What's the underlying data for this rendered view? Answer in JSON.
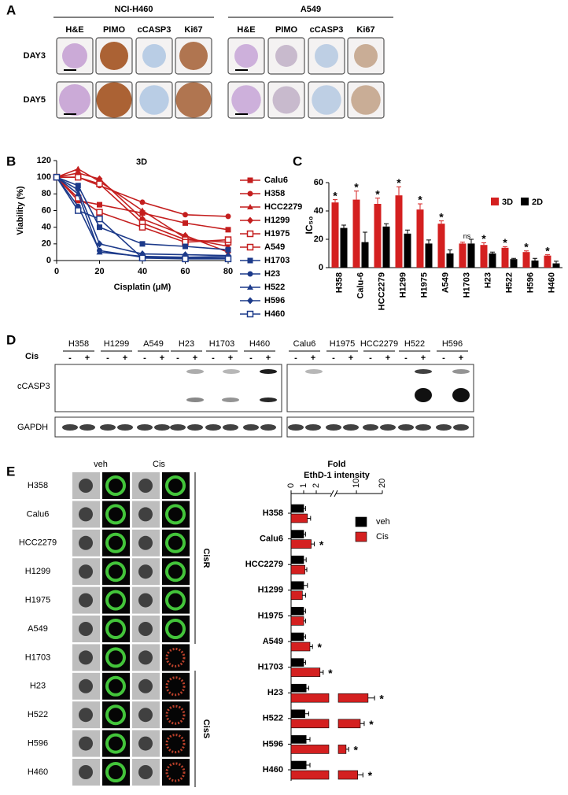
{
  "panel_labels": [
    "A",
    "B",
    "C",
    "D",
    "E"
  ],
  "panel_a": {
    "groups": [
      "NCI-H460",
      "A549"
    ],
    "stains": [
      "H&E",
      "PIMO",
      "cCASP3",
      "Ki67"
    ],
    "days": [
      "DAY3",
      "DAY5"
    ]
  },
  "panel_d": {
    "lines": [
      "H358",
      "H1299",
      "A549",
      "H23",
      "H1703",
      "H460",
      "Calu6",
      "H1975",
      "HCC2279",
      "H522",
      "H596"
    ],
    "treatment": "Cis",
    "signs": [
      "-",
      "+"
    ],
    "blots": [
      "cCASP3",
      "GAPDH"
    ]
  },
  "panel_e_images": {
    "conditions": [
      "veh",
      "Cis"
    ],
    "lines": [
      "H358",
      "Calu6",
      "HCC2279",
      "H1299",
      "H1975",
      "A549",
      "H1703",
      "H23",
      "H522",
      "H596",
      "H460"
    ],
    "groups": [
      "CisR",
      "CisS"
    ]
  },
  "chart_data": [
    {
      "type": "line",
      "title": "3D",
      "x_label": "Cisplatin (μM)",
      "y_label": "Viability (%)",
      "x": [
        0,
        10,
        20,
        40,
        60,
        80
      ],
      "xlim": [
        0,
        80
      ],
      "xticks": [
        0,
        20,
        40,
        60,
        80
      ],
      "ylim": [
        0,
        120
      ],
      "yticks": [
        0,
        20,
        40,
        60,
        80,
        100,
        120
      ],
      "series": [
        {
          "name": "Calu6",
          "color": "#c41e1e",
          "marker": "square",
          "values": [
            100,
            72,
            67,
            57,
            45,
            37
          ]
        },
        {
          "name": "H358",
          "color": "#c41e1e",
          "marker": "circle",
          "values": [
            100,
            100,
            90,
            70,
            55,
            53
          ]
        },
        {
          "name": "HCC2279",
          "color": "#c41e1e",
          "marker": "triangle",
          "values": [
            100,
            110,
            95,
            60,
            27,
            17
          ]
        },
        {
          "name": "H1299",
          "color": "#c41e1e",
          "marker": "diamond",
          "values": [
            100,
            105,
            98,
            50,
            30,
            10
          ]
        },
        {
          "name": "H1975",
          "color": "#c41e1e",
          "marker": "open",
          "values": [
            100,
            100,
            92,
            45,
            25,
            22
          ]
        },
        {
          "name": "A549",
          "color": "#c41e1e",
          "marker": "open",
          "values": [
            100,
            75,
            58,
            40,
            22,
            25
          ]
        },
        {
          "name": "H1703",
          "color": "#1c3a8a",
          "marker": "square",
          "values": [
            100,
            90,
            40,
            20,
            17,
            13
          ]
        },
        {
          "name": "H23",
          "color": "#1c3a8a",
          "marker": "circle",
          "values": [
            100,
            65,
            12,
            4,
            3,
            3
          ]
        },
        {
          "name": "H522",
          "color": "#1c3a8a",
          "marker": "triangle",
          "values": [
            100,
            80,
            10,
            5,
            4,
            5
          ]
        },
        {
          "name": "H596",
          "color": "#1c3a8a",
          "marker": "diamond",
          "values": [
            100,
            85,
            20,
            8,
            7,
            6
          ]
        },
        {
          "name": "H460",
          "color": "#1c3a8a",
          "marker": "open",
          "values": [
            100,
            60,
            50,
            3,
            2,
            2
          ]
        }
      ]
    },
    {
      "type": "bar",
      "y_label": "IC₅₀",
      "categories": [
        "H358",
        "Calu-6",
        "HCC2279",
        "H1299",
        "H1975",
        "A549",
        "H1703",
        "H23",
        "H522",
        "H596",
        "H460"
      ],
      "ylim": [
        0,
        60
      ],
      "yticks": [
        0,
        20,
        40,
        60
      ],
      "series": [
        {
          "name": "3D",
          "color": "#d42020",
          "values": [
            46,
            48,
            45,
            51,
            41,
            31,
            17,
            16,
            14,
            11,
            8.5
          ],
          "errors": [
            2,
            6,
            4,
            6,
            4,
            2,
            1,
            1.5,
            0.8,
            0.8,
            0.6
          ]
        },
        {
          "name": "2D",
          "color": "#000000",
          "values": [
            28,
            18,
            29,
            24,
            17,
            10,
            17,
            10,
            6,
            5,
            3
          ],
          "errors": [
            2,
            7,
            2,
            2.5,
            2.5,
            2.5,
            3,
            1,
            0.5,
            1.5,
            1.5
          ]
        }
      ],
      "annotations": [
        "*",
        "*",
        "*",
        "*",
        "*",
        "*",
        "ns",
        "*",
        "*",
        "*",
        "*"
      ]
    },
    {
      "type": "hbar-broken",
      "title": "Fold",
      "subtitle": "EthD-1 intensity",
      "categories": [
        "H358",
        "Calu6",
        "HCC2279",
        "H1299",
        "H1975",
        "A549",
        "H1703",
        "H23",
        "H522",
        "H596",
        "H460"
      ],
      "x_segments": [
        [
          0,
          3
        ],
        [
          3,
          20
        ]
      ],
      "xticks": [
        0,
        1,
        2,
        10,
        20
      ],
      "series": [
        {
          "name": "veh",
          "color": "#000000",
          "values": [
            1,
            1,
            1,
            1,
            1,
            1,
            1,
            1.2,
            1.1,
            1.2,
            1.2
          ],
          "errors": [
            0.15,
            0.15,
            0.2,
            0.3,
            0.15,
            0.15,
            0.15,
            0.2,
            0.3,
            0.3,
            0.3
          ]
        },
        {
          "name": "Cis",
          "color": "#d42020",
          "values": [
            1.3,
            1.6,
            1.1,
            0.9,
            1.0,
            1.5,
            2.3,
            14.5,
            11.5,
            6.0,
            10.5
          ],
          "errors": [
            0.25,
            0.25,
            0.15,
            0.25,
            0.15,
            0.2,
            0.25,
            2.5,
            1.5,
            1.0,
            2.0
          ]
        }
      ],
      "annotations": [
        null,
        "*",
        null,
        null,
        null,
        "*",
        "*",
        "*",
        "*",
        "*",
        "*"
      ]
    }
  ]
}
